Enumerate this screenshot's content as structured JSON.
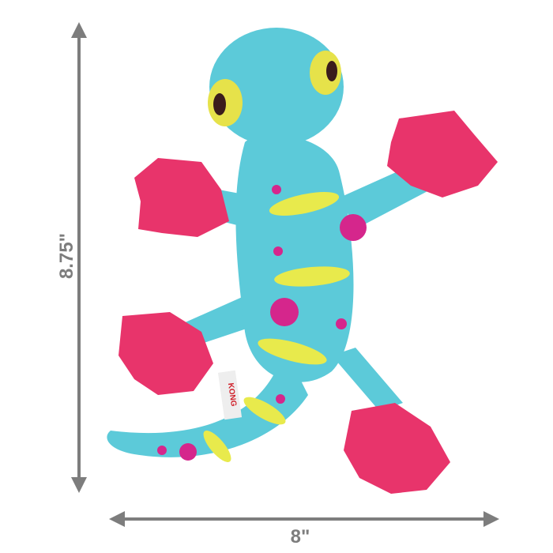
{
  "dimensions": {
    "height_label": "8.75\"",
    "width_label": "8\""
  },
  "product": {
    "tag_logo_text": "KONG"
  },
  "colors": {
    "body": "#5ccad9",
    "feet": "#e8346b",
    "stripes": "#e8ea4c",
    "dots": "#d5268c",
    "arrows": "#7d7d7d"
  }
}
